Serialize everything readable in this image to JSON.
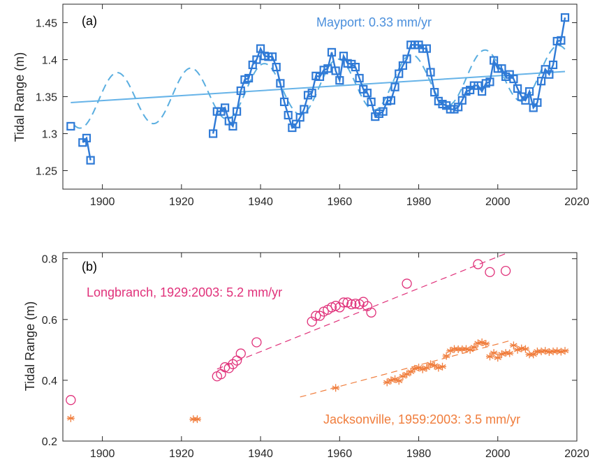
{
  "chart_data": [
    {
      "type": "line",
      "panel_label": "(a)",
      "xlabel": "",
      "ylabel": "Tidal Range (m)",
      "xlim": [
        1890,
        2020
      ],
      "ylim": [
        1.225,
        1.475
      ],
      "xticks": [
        1900,
        1920,
        1940,
        1960,
        1980,
        2000,
        2020
      ],
      "yticks": [
        1.25,
        1.3,
        1.35,
        1.4,
        1.45
      ],
      "ytick_labels": [
        "1.25",
        "1.3",
        "1.35",
        "1.4",
        "1.45"
      ],
      "grid": false,
      "annotations": [
        {
          "text": "Mayport: 0.33 mm/yr",
          "color": "#4a8fdc"
        }
      ],
      "series": [
        {
          "style": "solid line with square markers",
          "color": "#2f7ad6",
          "segments": [
            {
              "x": [
                1892
              ],
              "y": [
                1.31
              ]
            },
            {
              "x": [
                1895,
                1896,
                1897
              ],
              "y": [
                1.288,
                1.294,
                1.264
              ]
            },
            {
              "x": [
                1928,
                1929,
                1930,
                1931,
                1932,
                1933,
                1934,
                1935,
                1936,
                1937,
                1938,
                1939,
                1940,
                1941,
                1942,
                1943,
                1944,
                1945,
                1946,
                1947,
                1948,
                1949,
                1950,
                1951,
                1952,
                1953,
                1954,
                1955,
                1956,
                1957,
                1958,
                1959,
                1960,
                1961,
                1962,
                1963,
                1964,
                1965,
                1966,
                1967,
                1968,
                1969,
                1970,
                1971,
                1972,
                1973,
                1974,
                1975,
                1976,
                1977,
                1978,
                1979,
                1980,
                1981,
                1982,
                1983,
                1984,
                1985,
                1986,
                1987,
                1988,
                1989,
                1990,
                1991,
                1992,
                1993,
                1994,
                1995,
                1996,
                1997,
                1998,
                1999,
                2000,
                2001,
                2002,
                2003,
                2004,
                2005,
                2006,
                2007,
                2008,
                2009,
                2010,
                2011,
                2012,
                2013,
                2014,
                2015,
                2016,
                2017
              ],
              "y": [
                1.3,
                1.33,
                1.33,
                1.335,
                1.317,
                1.31,
                1.33,
                1.358,
                1.373,
                1.375,
                1.393,
                1.4,
                1.415,
                1.405,
                1.404,
                1.404,
                1.39,
                1.368,
                1.343,
                1.325,
                1.308,
                1.313,
                1.322,
                1.333,
                1.352,
                1.355,
                1.378,
                1.377,
                1.386,
                1.388,
                1.41,
                1.385,
                1.372,
                1.405,
                1.395,
                1.394,
                1.39,
                1.375,
                1.36,
                1.355,
                1.343,
                1.323,
                1.327,
                1.33,
                1.344,
                1.345,
                1.363,
                1.381,
                1.392,
                1.401,
                1.42,
                1.42,
                1.42,
                1.415,
                1.415,
                1.383,
                1.356,
                1.344,
                1.34,
                1.338,
                1.333,
                1.333,
                1.336,
                1.345,
                1.357,
                1.359,
                1.365,
                1.365,
                1.357,
                1.368,
                1.37,
                1.399,
                1.388,
                1.388,
                1.377,
                1.38,
                1.374,
                1.361,
                1.35,
                1.345,
                1.357,
                1.335,
                1.342,
                1.371,
                1.387,
                1.38,
                1.393,
                1.425,
                1.426,
                1.457
              ]
            }
          ]
        },
        {
          "style": "dashed sinusoid fit",
          "color": "#5aaee0",
          "mean_at": [
            [
              1890,
              1.342
            ],
            [
              2018,
              1.384
            ]
          ],
          "amplitude": 0.036,
          "period_years": 18.6,
          "peak_year": 1903.7,
          "x_range": [
            1893,
            2017
          ]
        },
        {
          "style": "solid linear trend",
          "color": "#66b3e8",
          "x": [
            1892,
            2017
          ],
          "y": [
            1.342,
            1.384
          ]
        }
      ]
    },
    {
      "type": "scatter",
      "panel_label": "(b)",
      "xlabel": "",
      "ylabel": "Tidal Range (m)",
      "xlim": [
        1890,
        2020
      ],
      "ylim": [
        0.2,
        0.82
      ],
      "xticks": [
        1900,
        1920,
        1940,
        1960,
        1980,
        2000,
        2020
      ],
      "yticks": [
        0.2,
        0.4,
        0.6,
        0.8
      ],
      "ytick_labels": [
        "0.2",
        "0.4",
        "0.6",
        "0.8"
      ],
      "grid": false,
      "annotations": [
        {
          "text": "Longbranch, 1929:2003: 5.2 mm/yr",
          "color": "#e0317a"
        },
        {
          "text": "Jacksonville, 1959:2003: 3.5 mm/yr",
          "color": "#f07d3c"
        }
      ],
      "series": [
        {
          "name": "Longbranch",
          "marker": "circle",
          "color": "#e0317a",
          "x": [
            1892,
            1929,
            1930,
            1931,
            1932,
            1933,
            1934,
            1935,
            1939,
            1953,
            1954,
            1955,
            1956,
            1957,
            1958,
            1959,
            1960,
            1961,
            1962,
            1963,
            1964,
            1965,
            1966,
            1967,
            1968,
            1977,
            1995,
            1998,
            2002
          ],
          "y": [
            0.335,
            0.413,
            0.42,
            0.443,
            0.44,
            0.453,
            0.465,
            0.488,
            0.525,
            0.593,
            0.612,
            0.612,
            0.626,
            0.632,
            0.64,
            0.645,
            0.64,
            0.656,
            0.656,
            0.65,
            0.652,
            0.65,
            0.658,
            0.644,
            0.623,
            0.718,
            0.782,
            0.756,
            0.76
          ],
          "trend": {
            "x": [
              1929,
              2003
            ],
            "y": [
              0.437,
              0.822
            ]
          }
        },
        {
          "name": "Jacksonville",
          "marker": "asterisk",
          "color": "#f07d3c",
          "x": [
            1892,
            1923,
            1924,
            1959,
            1972,
            1973,
            1974,
            1975,
            1976,
            1977,
            1978,
            1979,
            1980,
            1981,
            1982,
            1983,
            1984,
            1985,
            1986,
            1987,
            1988,
            1989,
            1990,
            1991,
            1992,
            1993,
            1994,
            1995,
            1996,
            1997,
            1998,
            1999,
            2000,
            2001,
            2002,
            2003,
            2004,
            2005,
            2006,
            2007,
            2008,
            2009,
            2010,
            2011,
            2012,
            2013,
            2014,
            2015,
            2016,
            2017
          ],
          "y": [
            0.275,
            0.272,
            0.272,
            0.375,
            0.393,
            0.4,
            0.404,
            0.398,
            0.413,
            0.42,
            0.428,
            0.438,
            0.442,
            0.436,
            0.441,
            0.453,
            0.448,
            0.441,
            0.445,
            0.48,
            0.497,
            0.503,
            0.502,
            0.502,
            0.503,
            0.5,
            0.509,
            0.522,
            0.525,
            0.52,
            0.478,
            0.49,
            0.474,
            0.486,
            0.49,
            0.489,
            0.515,
            0.5,
            0.505,
            0.503,
            0.485,
            0.485,
            0.495,
            0.495,
            0.497,
            0.493,
            0.495,
            0.496,
            0.494,
            0.497
          ],
          "trend": {
            "x": [
              1950,
              2003
            ],
            "y": [
              0.345,
              0.53
            ]
          }
        }
      ]
    }
  ]
}
